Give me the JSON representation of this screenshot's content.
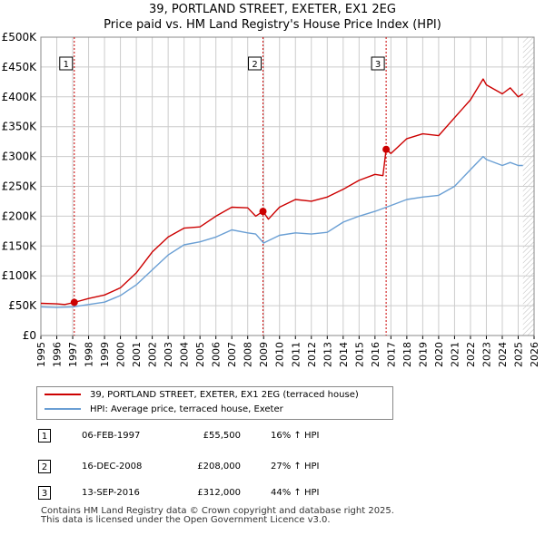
{
  "title_line1": "39, PORTLAND STREET, EXETER, EX1 2EG",
  "title_line2": "Price paid vs. HM Land Registry's House Price Index (HPI)",
  "colors": {
    "property": "#cc0000",
    "hpi": "#6a9fd4",
    "grid": "#cccccc",
    "marker": "#cc0000"
  },
  "chart_data": {
    "type": "line",
    "y_ticks": [
      {
        "label": "£0",
        "value": 0
      },
      {
        "label": "£50K",
        "value": 50000
      },
      {
        "label": "£100K",
        "value": 100000
      },
      {
        "label": "£150K",
        "value": 150000
      },
      {
        "label": "£200K",
        "value": 200000
      },
      {
        "label": "£250K",
        "value": 250000
      },
      {
        "label": "£300K",
        "value": 300000
      },
      {
        "label": "£350K",
        "value": 350000
      },
      {
        "label": "£400K",
        "value": 400000
      },
      {
        "label": "£450K",
        "value": 450000
      },
      {
        "label": "£500K",
        "value": 500000
      }
    ],
    "x_ticks": [
      "1995",
      "1996",
      "1997",
      "1998",
      "1999",
      "2000",
      "2001",
      "2002",
      "2003",
      "2004",
      "2005",
      "2006",
      "2007",
      "2008",
      "2009",
      "2010",
      "2011",
      "2012",
      "2013",
      "2014",
      "2015",
      "2016",
      "2017",
      "2018",
      "2019",
      "2020",
      "2021",
      "2022",
      "2023",
      "2024",
      "2025",
      "2026"
    ],
    "xlim": [
      1995,
      2026
    ],
    "ylim": [
      0,
      500000
    ],
    "data_end": 2025.3,
    "series": [
      {
        "name": "39, PORTLAND STREET, EXETER, EX1 2EG (terraced house)",
        "color": "#cc0000",
        "points": [
          [
            1995.0,
            54000
          ],
          [
            1996.0,
            53000
          ],
          [
            1996.5,
            52000
          ],
          [
            1997.1,
            55500
          ],
          [
            1998.0,
            62000
          ],
          [
            1999.0,
            68000
          ],
          [
            2000.0,
            80000
          ],
          [
            2001.0,
            105000
          ],
          [
            2002.0,
            140000
          ],
          [
            2003.0,
            165000
          ],
          [
            2004.0,
            180000
          ],
          [
            2005.0,
            182000
          ],
          [
            2006.0,
            200000
          ],
          [
            2007.0,
            215000
          ],
          [
            2008.0,
            214000
          ],
          [
            2008.5,
            200000
          ],
          [
            2008.96,
            208000
          ],
          [
            2009.3,
            195000
          ],
          [
            2010.0,
            215000
          ],
          [
            2011.0,
            228000
          ],
          [
            2012.0,
            225000
          ],
          [
            2013.0,
            232000
          ],
          [
            2014.0,
            245000
          ],
          [
            2015.0,
            260000
          ],
          [
            2016.0,
            270000
          ],
          [
            2016.5,
            268000
          ],
          [
            2016.7,
            312000
          ],
          [
            2017.0,
            305000
          ],
          [
            2018.0,
            330000
          ],
          [
            2019.0,
            338000
          ],
          [
            2020.0,
            335000
          ],
          [
            2021.0,
            365000
          ],
          [
            2022.0,
            395000
          ],
          [
            2022.8,
            430000
          ],
          [
            2023.0,
            420000
          ],
          [
            2024.0,
            405000
          ],
          [
            2024.5,
            415000
          ],
          [
            2025.0,
            400000
          ],
          [
            2025.3,
            405000
          ]
        ]
      },
      {
        "name": "HPI: Average price, terraced house, Exeter",
        "color": "#6a9fd4",
        "points": [
          [
            1995.0,
            48000
          ],
          [
            1996.0,
            47000
          ],
          [
            1997.0,
            48000
          ],
          [
            1998.0,
            52000
          ],
          [
            1999.0,
            56000
          ],
          [
            2000.0,
            67000
          ],
          [
            2001.0,
            85000
          ],
          [
            2002.0,
            110000
          ],
          [
            2003.0,
            135000
          ],
          [
            2004.0,
            152000
          ],
          [
            2005.0,
            157000
          ],
          [
            2006.0,
            165000
          ],
          [
            2007.0,
            177000
          ],
          [
            2008.0,
            172000
          ],
          [
            2008.5,
            170000
          ],
          [
            2009.0,
            155000
          ],
          [
            2010.0,
            168000
          ],
          [
            2011.0,
            172000
          ],
          [
            2012.0,
            170000
          ],
          [
            2013.0,
            173000
          ],
          [
            2014.0,
            190000
          ],
          [
            2015.0,
            200000
          ],
          [
            2016.0,
            208000
          ],
          [
            2017.0,
            218000
          ],
          [
            2018.0,
            228000
          ],
          [
            2019.0,
            232000
          ],
          [
            2020.0,
            235000
          ],
          [
            2021.0,
            250000
          ],
          [
            2022.0,
            278000
          ],
          [
            2022.8,
            300000
          ],
          [
            2023.0,
            295000
          ],
          [
            2024.0,
            285000
          ],
          [
            2024.5,
            290000
          ],
          [
            2025.0,
            285000
          ],
          [
            2025.3,
            285000
          ]
        ]
      }
    ],
    "sales_markers": [
      {
        "label": "1",
        "x": 1997.1,
        "y": 55500
      },
      {
        "label": "2",
        "x": 2008.96,
        "y": 208000
      },
      {
        "label": "3",
        "x": 2016.7,
        "y": 312000
      }
    ]
  },
  "legend": {
    "property_label": "39, PORTLAND STREET, EXETER, EX1 2EG (terraced house)",
    "hpi_label": "HPI: Average price, terraced house, Exeter"
  },
  "sales": [
    {
      "num": "1",
      "date": "06-FEB-1997",
      "price": "£55,500",
      "hpi": "16% ↑ HPI"
    },
    {
      "num": "2",
      "date": "16-DEC-2008",
      "price": "£208,000",
      "hpi": "27% ↑ HPI"
    },
    {
      "num": "3",
      "date": "13-SEP-2016",
      "price": "£312,000",
      "hpi": "44% ↑ HPI"
    }
  ],
  "footer": {
    "line1": "Contains HM Land Registry data © Crown copyright and database right 2025.",
    "line2": "This data is licensed under the Open Government Licence v3.0."
  }
}
